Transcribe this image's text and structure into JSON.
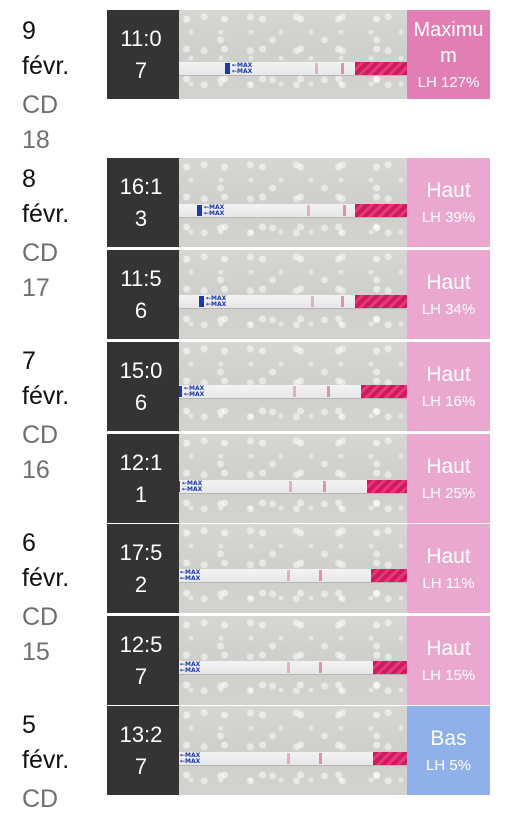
{
  "colors": {
    "maximum": "#e17fb4",
    "high": "#eba8cf",
    "low": "#8fb0e8",
    "time_bg": "#343434"
  },
  "days": [
    {
      "day": "9",
      "month": "févr.",
      "cd": "CD",
      "cd_num": "18"
    },
    {
      "day": "8",
      "month": "févr.",
      "cd": "CD",
      "cd_num": "17"
    },
    {
      "day": "7",
      "month": "févr.",
      "cd": "CD",
      "cd_num": "16"
    },
    {
      "day": "6",
      "month": "févr.",
      "cd": "CD",
      "cd_num": "15"
    },
    {
      "day": "5",
      "month": "févr.",
      "cd": "CD",
      "cd_num": ""
    }
  ],
  "tests": [
    {
      "time": "11:07",
      "level": "Maximum",
      "lh": "LH 127%",
      "result_color": "maximum"
    },
    {
      "time": "16:13",
      "level": "Haut",
      "lh": "LH 39%",
      "result_color": "high"
    },
    {
      "time": "11:56",
      "level": "Haut",
      "lh": "LH 34%",
      "result_color": "high"
    },
    {
      "time": "15:06",
      "level": "Haut",
      "lh": "LH 16%",
      "result_color": "high"
    },
    {
      "time": "12:11",
      "level": "Haut",
      "lh": "LH 25%",
      "result_color": "high"
    },
    {
      "time": "17:52",
      "level": "Haut",
      "lh": "LH 11%",
      "result_color": "high"
    },
    {
      "time": "12:57",
      "level": "Haut",
      "lh": "LH 15%",
      "result_color": "high"
    },
    {
      "time": "13:27",
      "level": "Bas",
      "lh": "LH 5%",
      "result_color": "low"
    }
  ],
  "strip": {
    "arrow_label": "MAX"
  }
}
